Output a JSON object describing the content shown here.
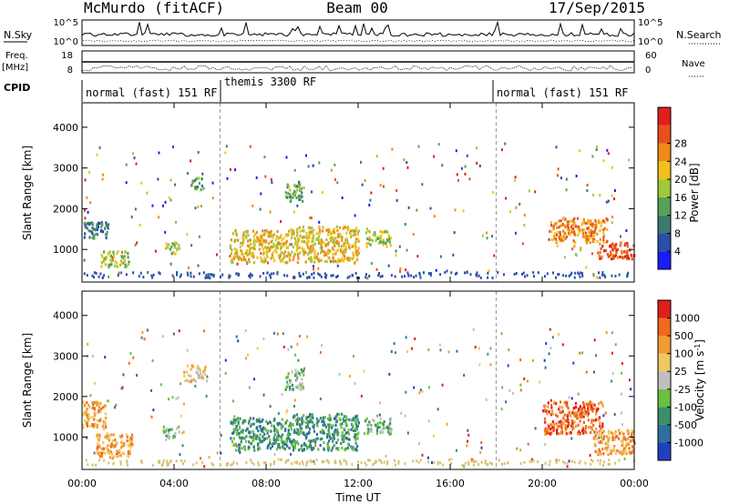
{
  "header": {
    "station": "McMurdo (fitACF)",
    "beam": "Beam 00",
    "date": "17/Sep/2015"
  },
  "top_panels": {
    "nsky_label": "N.Sky",
    "nsearch_label": "N.Search",
    "nsky_ticks": [
      "10^5",
      "10^0"
    ],
    "nsearch_ticks": [
      "10^5",
      "10^0"
    ],
    "freq_label": "Freq.",
    "freq_unit": "[MHz]",
    "freq_ticks": [
      "18",
      "8"
    ],
    "nave_label": "Nave",
    "nave_ticks": [
      "60",
      "0"
    ],
    "cpid_label": "CPID",
    "cpid_segments": [
      {
        "label": "normal (fast) 151 RF"
      },
      {
        "label": "themis 3300 RF"
      },
      {
        "label": "normal (fast) 151 RF"
      }
    ]
  },
  "chart_data": [
    {
      "type": "heatmap",
      "quantity": "Power",
      "ylabel": "Slant Range [km]",
      "xlabel": "Time UT",
      "x_ticks": [
        "00:00",
        "04:00",
        "08:00",
        "12:00",
        "16:00",
        "20:00",
        "00:00"
      ],
      "y_ticks": [
        "1000",
        "2000",
        "3000",
        "4000"
      ],
      "ylim": [
        200,
        4600
      ],
      "xlim_hours": [
        0,
        24
      ],
      "colorbar": {
        "label": "Power [dB]",
        "ticks": [
          "4",
          "8",
          "12",
          "16",
          "20",
          "24",
          "28"
        ],
        "colors": [
          "#1b1bff",
          "#2a4fa8",
          "#3d7a6e",
          "#57a05a",
          "#a0c83a",
          "#f2c01a",
          "#f08a18",
          "#e8501a",
          "#e01e1e"
        ]
      },
      "cpid_change_hours": [
        6.0,
        18.0
      ],
      "echo_regions": [
        {
          "t": [
            0.0,
            1.2
          ],
          "r": [
            1300,
            1700
          ],
          "level": 2
        },
        {
          "t": [
            0.8,
            2.0
          ],
          "r": [
            600,
            1000
          ],
          "level": 4
        },
        {
          "t": [
            3.6,
            4.2
          ],
          "r": [
            900,
            1200
          ],
          "level": 4
        },
        {
          "t": [
            4.6,
            5.2
          ],
          "r": [
            2500,
            2800
          ],
          "level": 3
        },
        {
          "t": [
            6.4,
            9.0
          ],
          "r": [
            700,
            1500
          ],
          "level": 5
        },
        {
          "t": [
            9.0,
            12.0
          ],
          "r": [
            700,
            1600
          ],
          "level": 5
        },
        {
          "t": [
            8.8,
            9.6
          ],
          "r": [
            2200,
            2700
          ],
          "level": 3
        },
        {
          "t": [
            12.3,
            13.4
          ],
          "r": [
            1100,
            1500
          ],
          "level": 4
        },
        {
          "t": [
            20.3,
            22.8
          ],
          "r": [
            1200,
            1800
          ],
          "level": 6
        },
        {
          "t": [
            22.3,
            24.0
          ],
          "r": [
            800,
            1200
          ],
          "level": 7
        }
      ]
    },
    {
      "type": "heatmap",
      "quantity": "Velocity",
      "ylabel": "Slant Range [km]",
      "xlabel": "Time UT",
      "x_ticks": [
        "00:00",
        "04:00",
        "08:00",
        "12:00",
        "16:00",
        "20:00",
        "00:00"
      ],
      "y_ticks": [
        "1000",
        "2000",
        "3000",
        "4000"
      ],
      "ylim": [
        200,
        4600
      ],
      "xlim_hours": [
        0,
        24
      ],
      "colorbar": {
        "label": "Velocity [m s^-1]",
        "ticks": [
          "1000",
          "500",
          "100",
          "25",
          "-25",
          "-100",
          "-500",
          "-1000"
        ],
        "colors": [
          "#2040c0",
          "#2e6fa0",
          "#3b8f6a",
          "#6ac040",
          "#bfbfbf",
          "#f0c860",
          "#f39a30",
          "#f06a1a",
          "#e01e1e"
        ]
      },
      "cpid_change_hours": [
        6.0,
        18.0
      ],
      "echo_regions": [
        {
          "t": [
            0.0,
            1.0
          ],
          "r": [
            1200,
            1900
          ],
          "level": 6
        },
        {
          "t": [
            0.6,
            2.2
          ],
          "r": [
            500,
            1100
          ],
          "level": 6
        },
        {
          "t": [
            3.5,
            4.2
          ],
          "r": [
            1000,
            1300
          ],
          "level": 3
        },
        {
          "t": [
            4.4,
            5.4
          ],
          "r": [
            2400,
            2800
          ],
          "level": 5
        },
        {
          "t": [
            6.4,
            9.0
          ],
          "r": [
            700,
            1500
          ],
          "level": 2
        },
        {
          "t": [
            9.0,
            12.0
          ],
          "r": [
            700,
            1600
          ],
          "level": 2
        },
        {
          "t": [
            8.8,
            9.6
          ],
          "r": [
            2200,
            2700
          ],
          "level": 3
        },
        {
          "t": [
            12.2,
            13.4
          ],
          "r": [
            1100,
            1500
          ],
          "level": 3
        },
        {
          "t": [
            20.0,
            22.6
          ],
          "r": [
            1100,
            1900
          ],
          "level": 7
        },
        {
          "t": [
            22.2,
            24.0
          ],
          "r": [
            600,
            1200
          ],
          "level": 6
        }
      ]
    }
  ]
}
